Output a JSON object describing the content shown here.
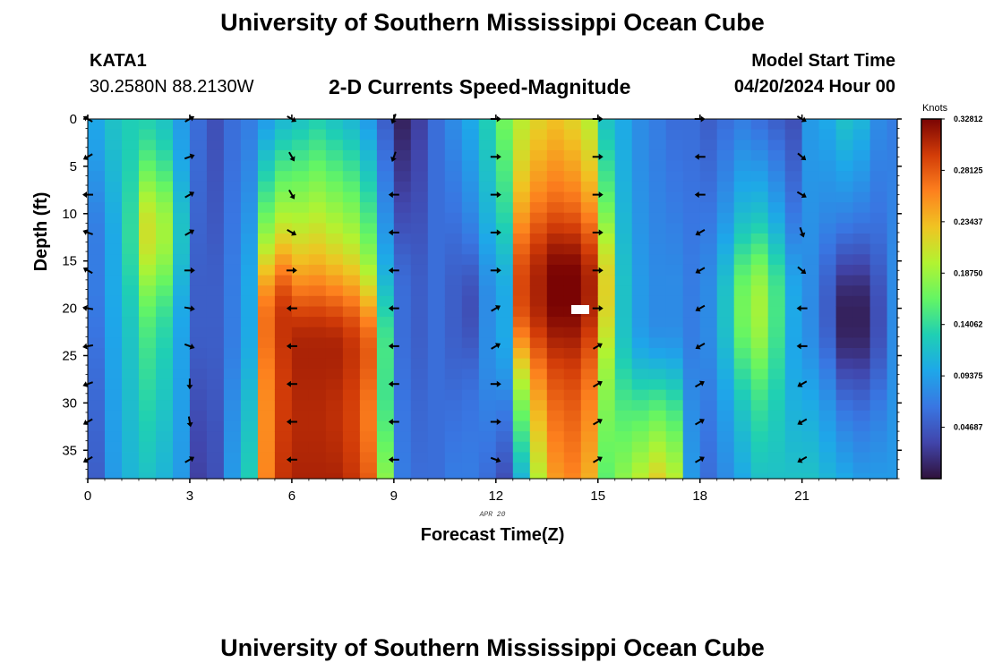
{
  "header": {
    "title": "University of Southern Mississippi Ocean Cube",
    "station": "KATA1",
    "coords": "30.2580N  88.2130W",
    "subtitle": "2-D Currents Speed-Magnitude",
    "start_label": "Model Start Time",
    "start_value": "04/20/2024 Hour 00"
  },
  "footer": {
    "title": "University of Southern Mississippi Ocean Cube"
  },
  "chart_data": {
    "type": "heatmap",
    "title": "2-D Currents Speed-Magnitude",
    "xlabel": "Forecast Time(Z)",
    "ylabel": "Depth (ft)",
    "date_label": "APR 20",
    "xlim": [
      0,
      23.8
    ],
    "ylim": [
      0,
      38
    ],
    "y_inverted": true,
    "xticks": [
      0,
      3,
      6,
      9,
      12,
      15,
      18,
      21
    ],
    "yticks": [
      0,
      5,
      10,
      15,
      20,
      25,
      30,
      35
    ],
    "colorbar": {
      "title": "Knots",
      "range": [
        0.0,
        0.3281
      ],
      "ticks": [
        "0.32812",
        "0.28125",
        "0.23437",
        "0.18750",
        "0.14062",
        "0.09375",
        "0.04687"
      ],
      "tick_values": [
        0.32812,
        0.28125,
        0.23437,
        0.1875,
        0.14062,
        0.09375,
        0.04687
      ]
    },
    "speed_profiles": [
      {
        "hour": 0.0,
        "surface": 0.1,
        "mid": 0.07,
        "bottom": 0.05,
        "core": 0.07,
        "core_depth": 15
      },
      {
        "hour": 0.5,
        "surface": 0.12,
        "mid": 0.1,
        "bottom": 0.09,
        "core": 0.1,
        "core_depth": 15
      },
      {
        "hour": 1.0,
        "surface": 0.13,
        "mid": 0.13,
        "bottom": 0.11,
        "core": 0.14,
        "core_depth": 12
      },
      {
        "hour": 1.5,
        "surface": 0.13,
        "mid": 0.17,
        "bottom": 0.12,
        "core": 0.21,
        "core_depth": 12
      },
      {
        "hour": 2.0,
        "surface": 0.12,
        "mid": 0.15,
        "bottom": 0.11,
        "core": 0.19,
        "core_depth": 12
      },
      {
        "hour": 2.5,
        "surface": 0.09,
        "mid": 0.1,
        "bottom": 0.09,
        "core": 0.12,
        "core_depth": 12
      },
      {
        "hour": 3.0,
        "surface": 0.06,
        "mid": 0.05,
        "bottom": 0.03,
        "core": 0.05,
        "core_depth": 20
      },
      {
        "hour": 3.5,
        "surface": 0.04,
        "mid": 0.05,
        "bottom": 0.04,
        "core": 0.05,
        "core_depth": 20
      },
      {
        "hour": 4.0,
        "surface": 0.06,
        "mid": 0.07,
        "bottom": 0.09,
        "core": 0.07,
        "core_depth": 20
      },
      {
        "hour": 4.5,
        "surface": 0.07,
        "mid": 0.1,
        "bottom": 0.13,
        "core": 0.1,
        "core_depth": 20
      },
      {
        "hour": 5.0,
        "surface": 0.09,
        "mid": 0.25,
        "bottom": 0.26,
        "core": 0.27,
        "core_depth": 22
      },
      {
        "hour": 5.5,
        "surface": 0.11,
        "mid": 0.29,
        "bottom": 0.3,
        "core": 0.3,
        "core_depth": 22
      },
      {
        "hour": 6.0,
        "surface": 0.12,
        "mid": 0.3,
        "bottom": 0.31,
        "core": 0.31,
        "core_depth": 25
      },
      {
        "hour": 6.5,
        "surface": 0.13,
        "mid": 0.3,
        "bottom": 0.31,
        "core": 0.31,
        "core_depth": 25
      },
      {
        "hour": 7.0,
        "surface": 0.12,
        "mid": 0.29,
        "bottom": 0.31,
        "core": 0.31,
        "core_depth": 25
      },
      {
        "hour": 7.5,
        "surface": 0.11,
        "mid": 0.28,
        "bottom": 0.3,
        "core": 0.3,
        "core_depth": 25
      },
      {
        "hour": 8.0,
        "surface": 0.09,
        "mid": 0.24,
        "bottom": 0.28,
        "core": 0.28,
        "core_depth": 25
      },
      {
        "hour": 8.5,
        "surface": 0.05,
        "mid": 0.13,
        "bottom": 0.18,
        "core": 0.15,
        "core_depth": 25
      },
      {
        "hour": 9.0,
        "surface": 0.01,
        "mid": 0.06,
        "bottom": 0.07,
        "core": 0.06,
        "core_depth": 20
      },
      {
        "hour": 9.5,
        "surface": 0.03,
        "mid": 0.05,
        "bottom": 0.06,
        "core": 0.05,
        "core_depth": 20
      },
      {
        "hour": 10.0,
        "surface": 0.06,
        "mid": 0.06,
        "bottom": 0.06,
        "core": 0.06,
        "core_depth": 20
      },
      {
        "hour": 10.5,
        "surface": 0.08,
        "mid": 0.05,
        "bottom": 0.07,
        "core": 0.05,
        "core_depth": 20
      },
      {
        "hour": 11.0,
        "surface": 0.1,
        "mid": 0.06,
        "bottom": 0.07,
        "core": 0.04,
        "core_depth": 20
      },
      {
        "hour": 11.5,
        "surface": 0.13,
        "mid": 0.09,
        "bottom": 0.06,
        "core": 0.08,
        "core_depth": 20
      },
      {
        "hour": 12.0,
        "surface": 0.17,
        "mid": 0.11,
        "bottom": 0.04,
        "core": 0.1,
        "core_depth": 20
      },
      {
        "hour": 12.5,
        "surface": 0.2,
        "mid": 0.27,
        "bottom": 0.11,
        "core": 0.29,
        "core_depth": 18
      },
      {
        "hour": 13.0,
        "surface": 0.22,
        "mid": 0.3,
        "bottom": 0.2,
        "core": 0.31,
        "core_depth": 18
      },
      {
        "hour": 13.5,
        "surface": 0.23,
        "mid": 0.31,
        "bottom": 0.25,
        "core": 0.33,
        "core_depth": 18
      },
      {
        "hour": 14.0,
        "surface": 0.22,
        "mid": 0.31,
        "bottom": 0.26,
        "core": 0.33,
        "core_depth": 18
      },
      {
        "hour": 14.5,
        "surface": 0.2,
        "mid": 0.29,
        "bottom": 0.24,
        "core": 0.31,
        "core_depth": 18
      },
      {
        "hour": 15.0,
        "surface": 0.12,
        "mid": 0.2,
        "bottom": 0.16,
        "core": 0.22,
        "core_depth": 18
      },
      {
        "hour": 15.5,
        "surface": 0.1,
        "mid": 0.12,
        "bottom": 0.18,
        "core": 0.12,
        "core_depth": 20
      },
      {
        "hour": 16.0,
        "surface": 0.08,
        "mid": 0.09,
        "bottom": 0.2,
        "core": 0.09,
        "core_depth": 20
      },
      {
        "hour": 16.5,
        "surface": 0.07,
        "mid": 0.08,
        "bottom": 0.22,
        "core": 0.08,
        "core_depth": 20
      },
      {
        "hour": 17.0,
        "surface": 0.06,
        "mid": 0.08,
        "bottom": 0.2,
        "core": 0.08,
        "core_depth": 20
      },
      {
        "hour": 17.5,
        "surface": 0.06,
        "mid": 0.07,
        "bottom": 0.09,
        "core": 0.07,
        "core_depth": 20
      },
      {
        "hour": 18.0,
        "surface": 0.05,
        "mid": 0.08,
        "bottom": 0.06,
        "core": 0.08,
        "core_depth": 20
      },
      {
        "hour": 18.5,
        "surface": 0.06,
        "mid": 0.11,
        "bottom": 0.08,
        "core": 0.12,
        "core_depth": 20
      },
      {
        "hour": 19.0,
        "surface": 0.07,
        "mid": 0.15,
        "bottom": 0.1,
        "core": 0.17,
        "core_depth": 20
      },
      {
        "hour": 19.5,
        "surface": 0.06,
        "mid": 0.17,
        "bottom": 0.12,
        "core": 0.19,
        "core_depth": 20
      },
      {
        "hour": 20.0,
        "surface": 0.05,
        "mid": 0.14,
        "bottom": 0.12,
        "core": 0.15,
        "core_depth": 20
      },
      {
        "hour": 20.5,
        "surface": 0.04,
        "mid": 0.09,
        "bottom": 0.12,
        "core": 0.1,
        "core_depth": 20
      },
      {
        "hour": 21.0,
        "surface": 0.09,
        "mid": 0.08,
        "bottom": 0.12,
        "core": 0.08,
        "core_depth": 20
      },
      {
        "hour": 21.5,
        "surface": 0.1,
        "mid": 0.06,
        "bottom": 0.11,
        "core": 0.05,
        "core_depth": 20
      },
      {
        "hour": 22.0,
        "surface": 0.12,
        "mid": 0.03,
        "bottom": 0.1,
        "core": 0.01,
        "core_depth": 21
      },
      {
        "hour": 22.5,
        "surface": 0.11,
        "mid": 0.03,
        "bottom": 0.09,
        "core": 0.01,
        "core_depth": 21
      },
      {
        "hour": 23.0,
        "surface": 0.08,
        "mid": 0.05,
        "bottom": 0.09,
        "core": 0.04,
        "core_depth": 21
      },
      {
        "hour": 23.5,
        "surface": 0.07,
        "mid": 0.08,
        "bottom": 0.09,
        "core": 0.08,
        "core_depth": 21
      }
    ],
    "vector_hours": [
      0,
      3,
      6,
      9,
      12,
      15,
      18,
      21
    ],
    "vector_depths": [
      0,
      4,
      8,
      12,
      16,
      20,
      24,
      28,
      32,
      36
    ],
    "vector_directions_deg": [
      [
        300,
        240,
        270,
        290,
        300,
        280,
        260,
        250,
        240,
        240
      ],
      [
        60,
        70,
        60,
        60,
        90,
        100,
        110,
        180,
        170,
        60
      ],
      [
        120,
        150,
        150,
        120,
        90,
        270,
        270,
        270,
        270,
        270
      ],
      [
        200,
        200,
        270,
        270,
        270,
        270,
        270,
        270,
        270,
        270
      ],
      [
        90,
        90,
        90,
        90,
        90,
        60,
        60,
        90,
        90,
        110
      ],
      [
        90,
        90,
        90,
        90,
        90,
        90,
        60,
        60,
        60,
        60
      ],
      [
        90,
        270,
        270,
        240,
        240,
        240,
        240,
        60,
        60,
        60
      ],
      [
        120,
        130,
        120,
        160,
        130,
        270,
        270,
        240,
        240,
        240
      ]
    ]
  }
}
